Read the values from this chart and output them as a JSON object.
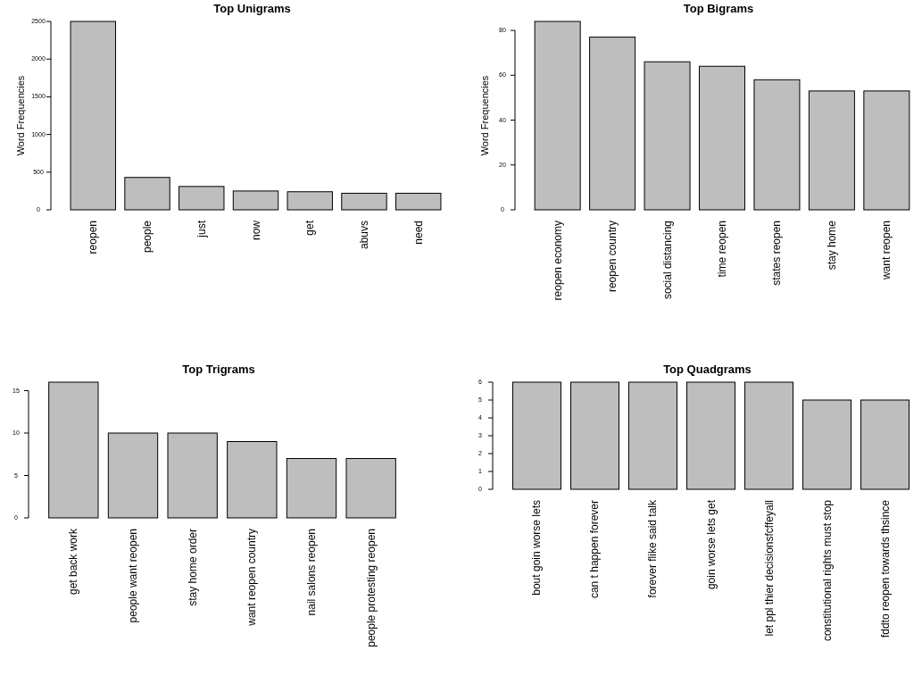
{
  "chart_data": [
    {
      "type": "bar",
      "title": "Top Unigrams",
      "ylabel": "Word Frequencies",
      "categories": [
        "reopen",
        "people",
        "just",
        "now",
        "get",
        "abuvs",
        "need"
      ],
      "values": [
        2500,
        430,
        310,
        250,
        240,
        220,
        220
      ],
      "color": "#bebebe",
      "ylim": [
        0,
        2500
      ],
      "yticks": [
        0,
        500,
        1000,
        1500,
        2000,
        2500
      ],
      "grid": false
    },
    {
      "type": "bar",
      "title": "Top Bigrams",
      "ylabel": "Word Frequencies",
      "categories": [
        "reopen economy",
        "reopen country",
        "social distancing",
        "time reopen",
        "states reopen",
        "stay home",
        "want reopen"
      ],
      "values": [
        84,
        77,
        66,
        64,
        58,
        53,
        53
      ],
      "color": "#bebebe",
      "ylim": [
        0,
        84
      ],
      "yticks": [
        0,
        20,
        40,
        60,
        80
      ],
      "grid": false
    },
    {
      "type": "bar",
      "title": "Top Trigrams",
      "categories": [
        "get back work",
        "people want reopen",
        "stay home order",
        "want reopen country",
        "nail salons reopen",
        "people protesting reopen"
      ],
      "values": [
        16,
        10,
        10,
        9,
        7,
        7
      ],
      "color": "#bebebe",
      "ylim": [
        0,
        16
      ],
      "yticks": [
        0,
        5,
        10,
        15
      ],
      "grid": false
    },
    {
      "type": "bar",
      "title": "Top Quadgrams",
      "categories": [
        "bout goin worse lets",
        "can t happen forever",
        "forever flike said talk",
        "goin worse lets get",
        "let ppl thier decisionsfcffeyall",
        "constitutional rights must stop",
        "fddto reopen towards thsince"
      ],
      "values": [
        6,
        6,
        6,
        6,
        6,
        5,
        5
      ],
      "color": "#bebebe",
      "ylim": [
        0,
        6
      ],
      "yticks": [
        0,
        1,
        2,
        3,
        4,
        5,
        6
      ],
      "grid": false
    }
  ]
}
